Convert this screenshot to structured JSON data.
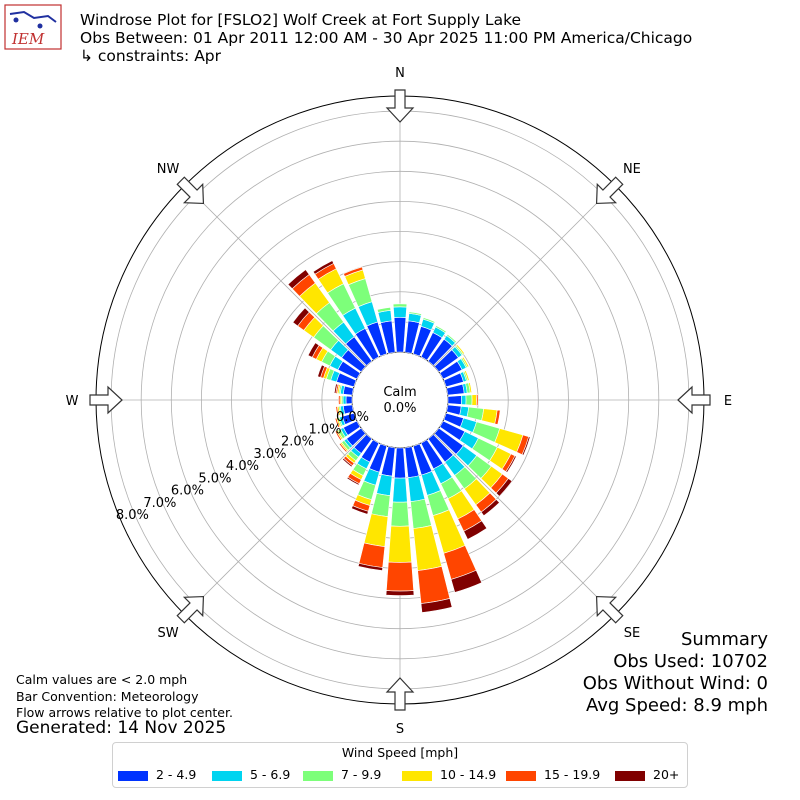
{
  "header": {
    "title": "Windrose Plot for [FSLO2] Wolf Creek at Fort Supply Lake",
    "period": "Obs Between: 01 Apr 2011 12:00 AM - 30 Apr 2025 11:00 PM America/Chicago",
    "constraints": "↳ constraints: Apr",
    "logo_text": "IEM"
  },
  "footer": {
    "calm_note": "Calm values are < 2.0 mph",
    "bar_note": "Bar Convention: Meteorology",
    "flow_note": "Flow arrows relative to plot center.",
    "generated": "Generated: 14 Nov 2025"
  },
  "summary": {
    "title": "Summary",
    "obs_used": "Obs Used: 10702",
    "obs_without_wind": "Obs Without Wind: 0",
    "avg_speed": "Avg Speed: 8.9 mph"
  },
  "colors": {
    "bins": [
      "#0033ff",
      "#00d4f0",
      "#7dff7a",
      "#ffe600",
      "#ff4500",
      "#800000"
    ],
    "grid": "#b0b0b0"
  },
  "chart_data": {
    "type": "windrose",
    "calm_label": "Calm",
    "calm_value_label": "0.0%",
    "legend_title": "Wind Speed [mph]",
    "speed_bins": [
      "2 - 4.9",
      "5 - 6.9",
      "7 - 9.9",
      "10 - 14.9",
      "15 - 19.9",
      "20+"
    ],
    "radial_tick_labels": [
      "0.0%",
      "1.0%",
      "2.0%",
      "3.0%",
      "4.0%",
      "5.0%",
      "6.0%",
      "7.0%",
      "8.0%"
    ],
    "radial_range": [
      0,
      8.5
    ],
    "grid": true,
    "legend_position": "bottom-center",
    "compass_labels": [
      "N",
      "NE",
      "E",
      "SE",
      "S",
      "SW",
      "W",
      "NW"
    ],
    "direction_degrees": [
      0,
      10,
      20,
      30,
      40,
      50,
      60,
      70,
      80,
      90,
      100,
      110,
      120,
      130,
      140,
      150,
      160,
      170,
      180,
      190,
      200,
      210,
      220,
      230,
      240,
      250,
      260,
      270,
      280,
      290,
      300,
      310,
      320,
      330,
      340,
      350
    ],
    "series": [
      {
        "name": "2 - 4.9",
        "values": [
          1.15,
          1.05,
          0.95,
          0.9,
          0.9,
          0.8,
          0.7,
          0.6,
          0.55,
          0.45,
          0.45,
          0.6,
          0.8,
          1.0,
          0.95,
          0.95,
          1.0,
          1.0,
          1.0,
          0.95,
          0.9,
          0.7,
          0.6,
          0.6,
          0.5,
          0.4,
          0.3,
          0.2,
          0.3,
          0.6,
          0.7,
          0.8,
          1.0,
          1.05,
          1.1,
          1.05
        ]
      },
      {
        "name": "5 - 6.9",
        "values": [
          0.35,
          0.25,
          0.25,
          0.2,
          0.15,
          0.15,
          0.15,
          0.1,
          0.1,
          0.15,
          0.25,
          0.45,
          0.5,
          0.55,
          0.55,
          0.55,
          0.7,
          0.8,
          0.8,
          0.65,
          0.45,
          0.25,
          0.15,
          0.1,
          0.1,
          0.1,
          0.1,
          0.1,
          0.1,
          0.2,
          0.3,
          0.45,
          0.6,
          0.75,
          0.7,
          0.35
        ]
      },
      {
        "name": "7 - 9.9",
        "values": [
          0.1,
          0.05,
          0.05,
          0.05,
          0.05,
          0.05,
          0.05,
          0.05,
          0.1,
          0.2,
          0.5,
          0.8,
          0.7,
          0.6,
          0.55,
          0.55,
          0.7,
          0.9,
          0.8,
          0.7,
          0.5,
          0.25,
          0.15,
          0.1,
          0.1,
          0.05,
          0.05,
          0.05,
          0.05,
          0.15,
          0.3,
          0.7,
          0.8,
          0.9,
          0.8,
          0.1
        ]
      },
      {
        "name": "10 - 14.9",
        "values": [
          0.0,
          0.0,
          0.0,
          0.0,
          0.0,
          0.05,
          0.05,
          0.05,
          0.05,
          0.15,
          0.45,
          0.8,
          0.5,
          0.45,
          0.65,
          0.75,
          1.3,
          1.4,
          1.2,
          1.0,
          0.2,
          0.15,
          0.1,
          0.05,
          0.05,
          0.05,
          0.05,
          0.05,
          0.05,
          0.1,
          0.2,
          0.4,
          0.8,
          0.55,
          0.3,
          0.0
        ]
      },
      {
        "name": "15 - 19.9",
        "values": [
          0.0,
          0.0,
          0.0,
          0.0,
          0.0,
          0.0,
          0.0,
          0.0,
          0.0,
          0.05,
          0.1,
          0.2,
          0.15,
          0.25,
          0.3,
          0.45,
          0.9,
          1.1,
          0.95,
          0.7,
          0.2,
          0.15,
          0.1,
          0.05,
          0.05,
          0.05,
          0.05,
          0.05,
          0.05,
          0.1,
          0.15,
          0.25,
          0.35,
          0.2,
          0.1,
          0.0
        ]
      },
      {
        "name": "20+",
        "values": [
          0.0,
          0.0,
          0.0,
          0.0,
          0.0,
          0.0,
          0.0,
          0.0,
          0.0,
          0.0,
          0.0,
          0.05,
          0.05,
          0.15,
          0.15,
          0.3,
          0.45,
          0.3,
          0.15,
          0.1,
          0.1,
          0.05,
          0.05,
          0.0,
          0.0,
          0.0,
          0.0,
          0.0,
          0.05,
          0.1,
          0.15,
          0.2,
          0.2,
          0.1,
          0.0,
          0.0
        ]
      }
    ]
  }
}
